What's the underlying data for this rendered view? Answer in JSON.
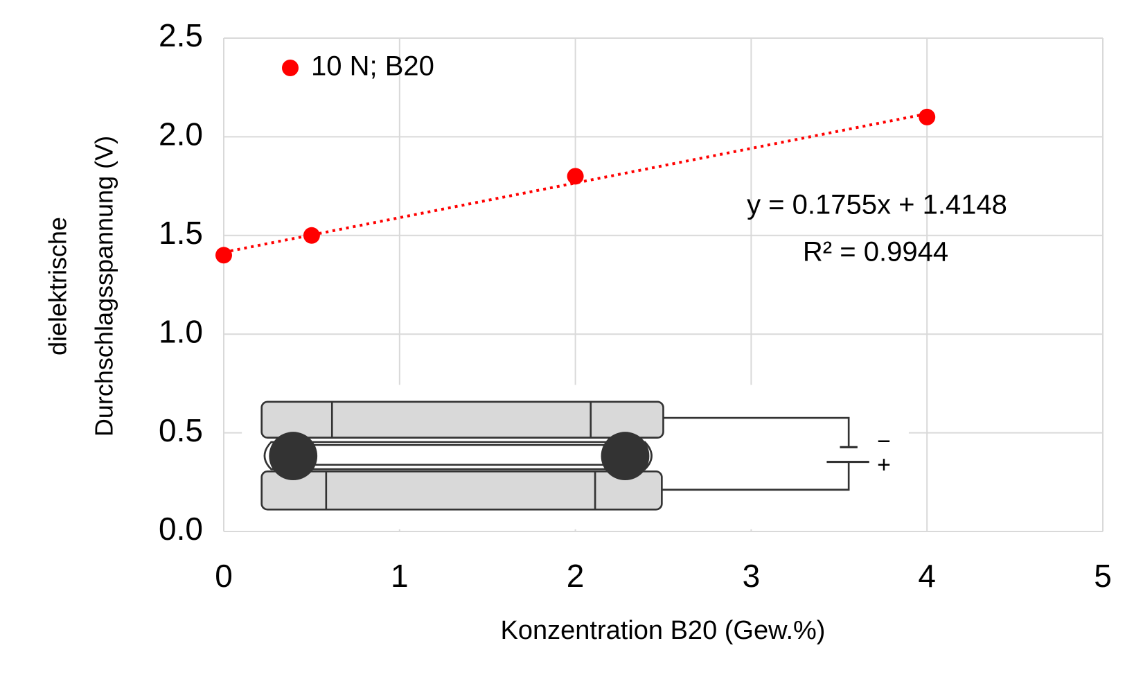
{
  "chart_data": {
    "type": "scatter",
    "xlabel": "Konzentration B20 (Gew.%)",
    "ylabel": [
      "dielektrische",
      "Durchschlagsspannung (V)"
    ],
    "series": [
      {
        "name": "10 N; B20",
        "color": "#ff0000",
        "x": [
          0,
          0.5,
          2,
          4
        ],
        "values": [
          1.4,
          1.5,
          1.8,
          2.1
        ]
      }
    ],
    "trendline": {
      "style": "dotted",
      "equation": "y = 0.1755x + 1.4148",
      "r2": "R² = 0.9944"
    },
    "xlim": [
      0,
      5
    ],
    "xticks": [
      0,
      1,
      2,
      3,
      4,
      5
    ],
    "ylim": [
      0,
      2.5
    ],
    "yticks": [
      {
        "value": 0,
        "label": "0.0"
      },
      0.5,
      {
        "value": 1,
        "label": "1.0"
      },
      1.5,
      {
        "value": 2,
        "label": "2.0"
      },
      2.5
    ],
    "grid": true,
    "legend": "top-left",
    "diagram": {
      "minus": "−",
      "plus": "+"
    }
  }
}
